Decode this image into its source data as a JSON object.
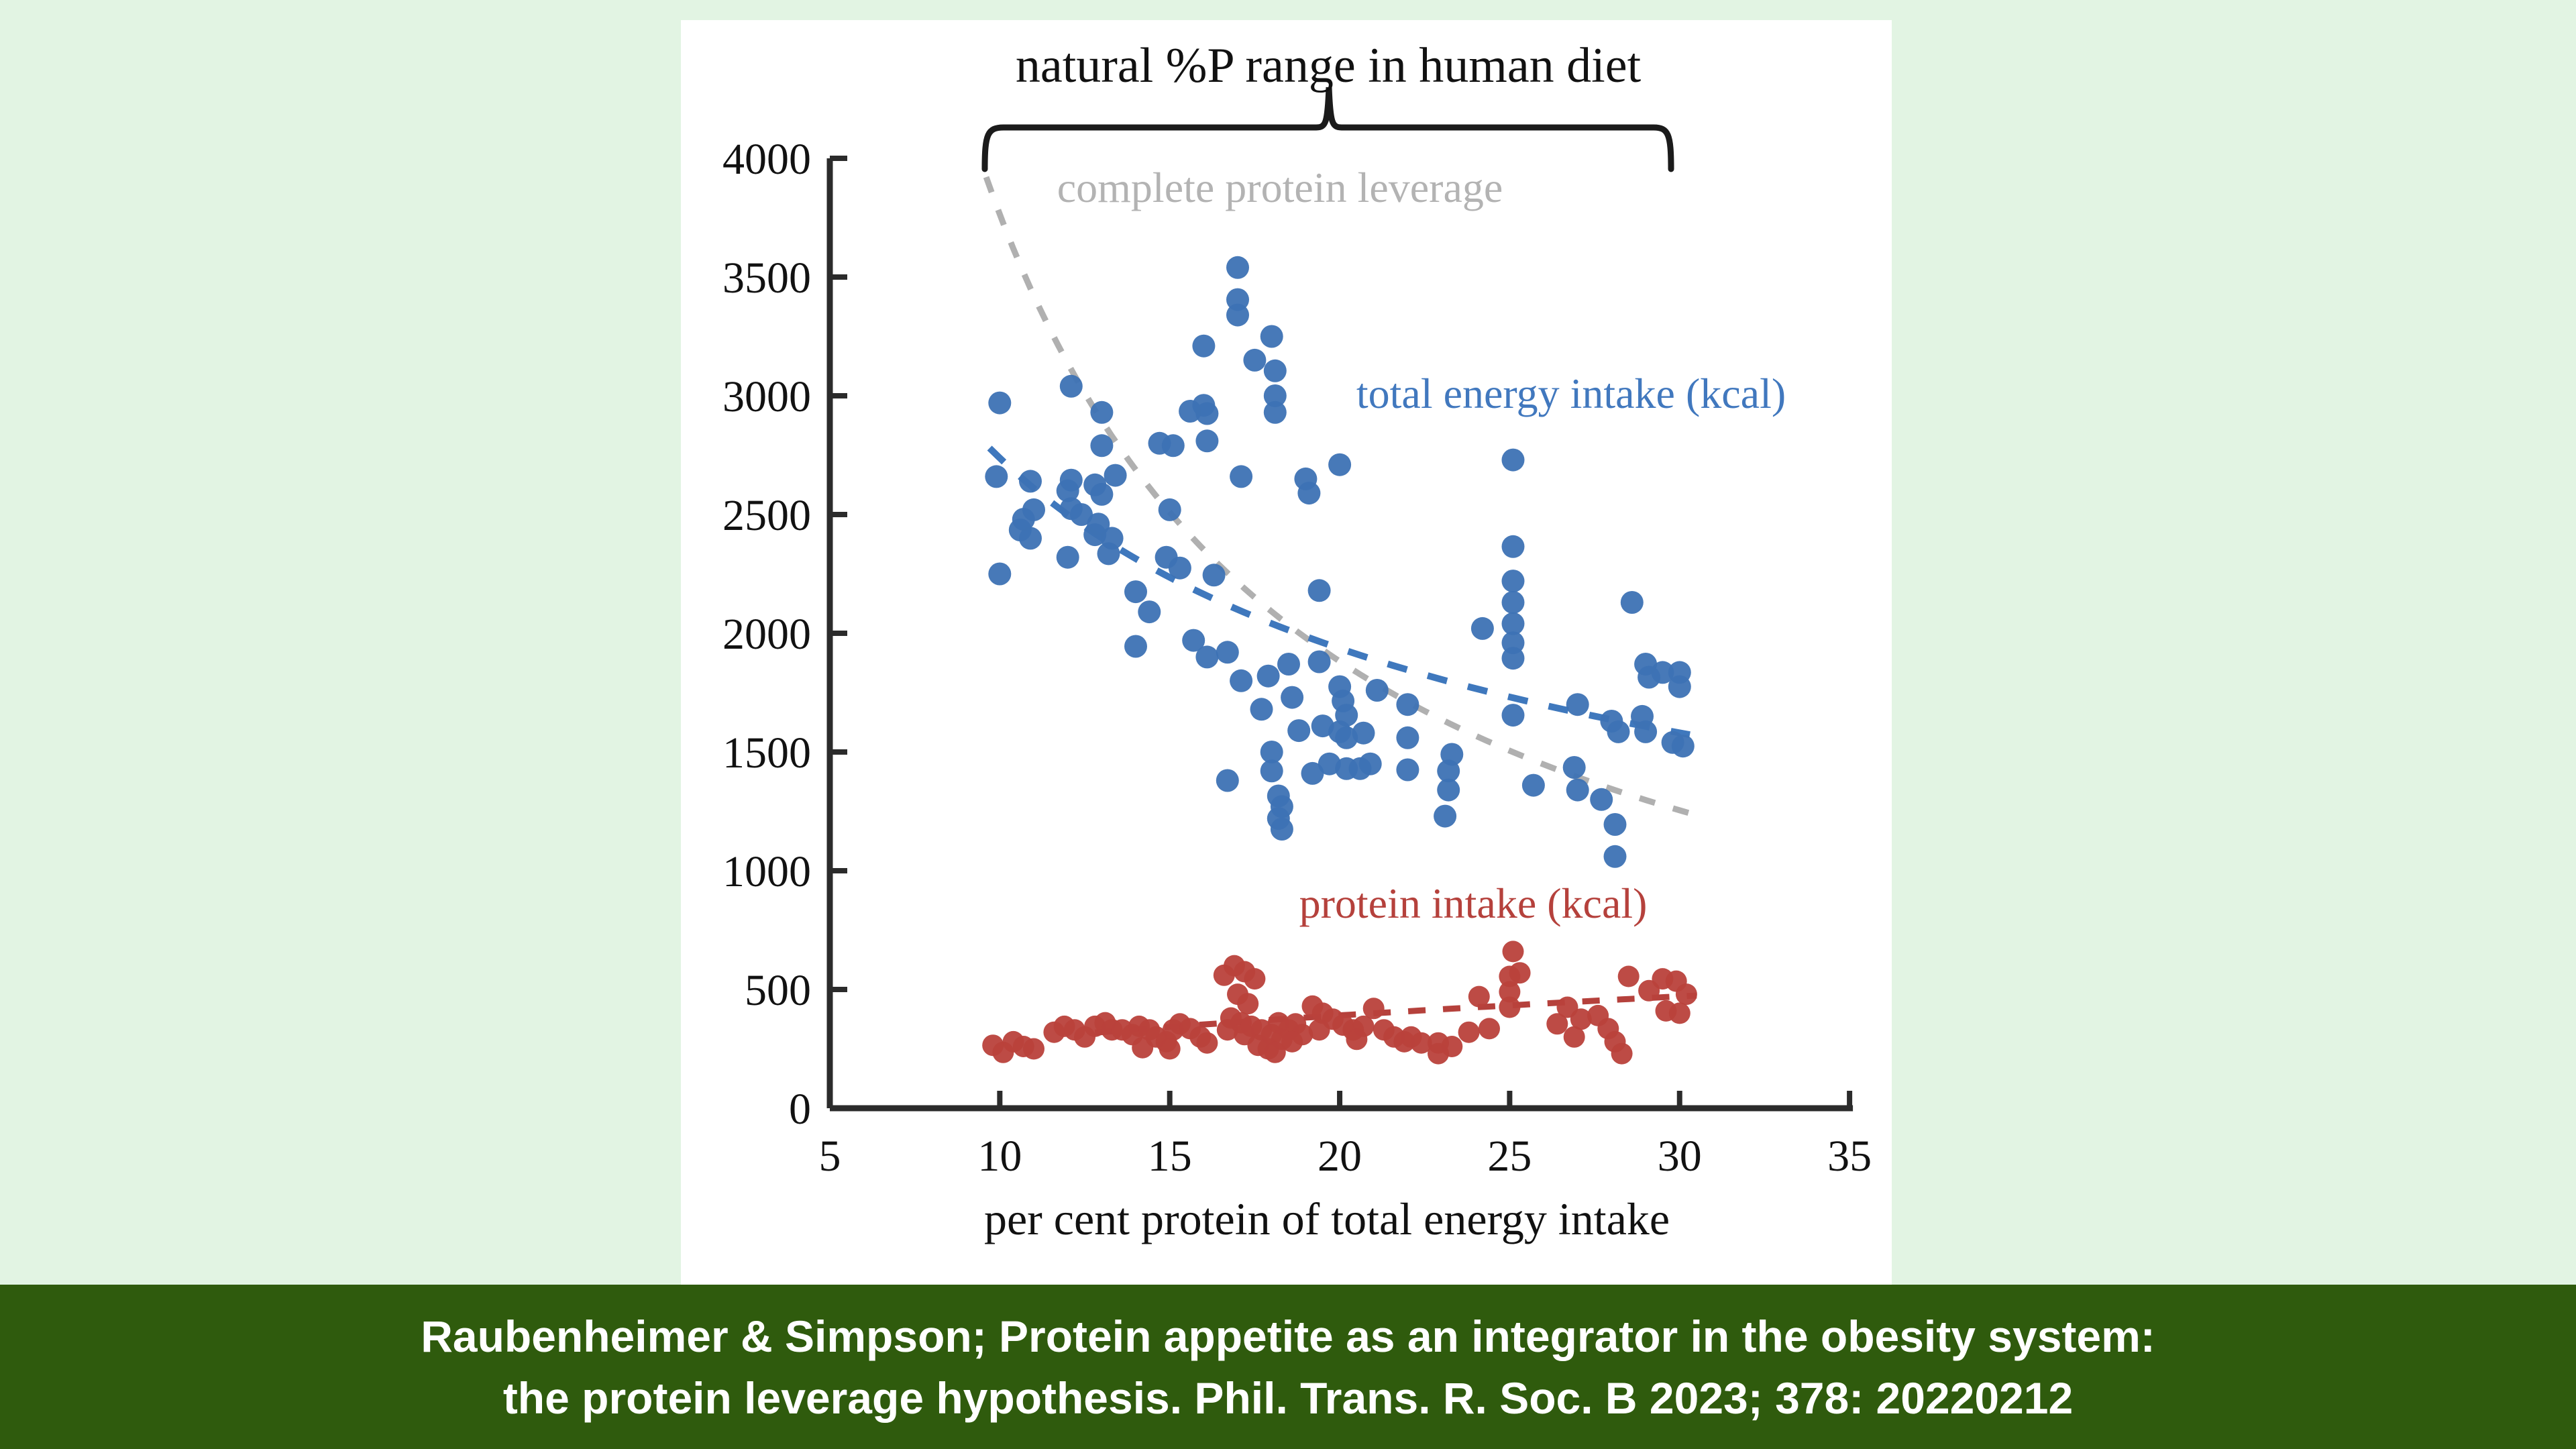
{
  "page": {
    "background": "#e2f4e3",
    "panel_background": "#ffffff",
    "axis_color": "#2b2b2b",
    "text_color": "#111111"
  },
  "caption": {
    "line1": "Raubenheimer & Simpson; Protein appetite as an integrator in the obesity system:",
    "line2": "the protein leverage hypothesis. Phil. Trans. R. Soc. B 2023; 378: 20220212",
    "background": "#2f5b0d",
    "text_color": "#ffffff"
  },
  "chart_data": {
    "type": "scatter",
    "title": "natural %P range in human diet",
    "xlabel": "per cent protein of total energy intake",
    "xlim": [
      5,
      35
    ],
    "ylim": [
      0,
      4000
    ],
    "x_ticks": [
      5,
      10,
      15,
      20,
      25,
      30,
      35
    ],
    "y_ticks": [
      0,
      500,
      1000,
      1500,
      2000,
      2500,
      3000,
      3500,
      4000
    ],
    "grid": false,
    "bracket": {
      "x_start": 9.55,
      "x_end": 29.75
    },
    "series": [
      {
        "name": "total energy intake (kcal)",
        "color": "#3d72b4",
        "label_color": "#4178be",
        "marker_radius": 17,
        "points": [
          [
            10.0,
            2970
          ],
          [
            12.1,
            3040
          ],
          [
            13.0,
            2930
          ],
          [
            16.0,
            3210
          ],
          [
            17.0,
            3540
          ],
          [
            17.0,
            3405
          ],
          [
            17.0,
            3340
          ],
          [
            17.5,
            3150
          ],
          [
            18.0,
            3250
          ],
          [
            18.1,
            3105
          ],
          [
            18.1,
            3000
          ],
          [
            18.1,
            2930
          ],
          [
            16.0,
            2960
          ],
          [
            15.6,
            2935
          ],
          [
            16.1,
            2925
          ],
          [
            16.1,
            2810
          ],
          [
            14.7,
            2800
          ],
          [
            15.1,
            2790
          ],
          [
            13.0,
            2790
          ],
          [
            9.9,
            2660
          ],
          [
            13.4,
            2665
          ],
          [
            12.1,
            2645
          ],
          [
            12.0,
            2600
          ],
          [
            12.8,
            2625
          ],
          [
            13.0,
            2585
          ],
          [
            10.9,
            2640
          ],
          [
            10.7,
            2480
          ],
          [
            10.9,
            2400
          ],
          [
            12.1,
            2525
          ],
          [
            12.4,
            2500
          ],
          [
            12.9,
            2460
          ],
          [
            13.3,
            2400
          ],
          [
            12.0,
            2320
          ],
          [
            10.0,
            2250
          ],
          [
            15.0,
            2520
          ],
          [
            11.0,
            2520
          ],
          [
            10.6,
            2435
          ],
          [
            12.8,
            2415
          ],
          [
            13.2,
            2335
          ],
          [
            14.0,
            2175
          ],
          [
            14.4,
            2090
          ],
          [
            14.9,
            2320
          ],
          [
            15.3,
            2275
          ],
          [
            16.3,
            2245
          ],
          [
            17.1,
            2660
          ],
          [
            19.0,
            2650
          ],
          [
            19.1,
            2590
          ],
          [
            20.0,
            2710
          ],
          [
            25.1,
            2730
          ],
          [
            19.4,
            2180
          ],
          [
            25.1,
            2365
          ],
          [
            25.1,
            2220
          ],
          [
            25.1,
            2130
          ],
          [
            25.1,
            2040
          ],
          [
            25.1,
            1960
          ],
          [
            25.1,
            1895
          ],
          [
            24.2,
            2020
          ],
          [
            28.6,
            2130
          ],
          [
            14.0,
            1945
          ],
          [
            15.7,
            1970
          ],
          [
            16.1,
            1900
          ],
          [
            16.7,
            1920
          ],
          [
            17.1,
            1800
          ],
          [
            17.9,
            1820
          ],
          [
            18.5,
            1870
          ],
          [
            19.4,
            1880
          ],
          [
            18.6,
            1730
          ],
          [
            17.7,
            1680
          ],
          [
            20.0,
            1775
          ],
          [
            20.1,
            1715
          ],
          [
            20.2,
            1655
          ],
          [
            21.1,
            1760
          ],
          [
            19.5,
            1610
          ],
          [
            18.8,
            1590
          ],
          [
            20.0,
            1585
          ],
          [
            20.7,
            1580
          ],
          [
            20.2,
            1560
          ],
          [
            19.7,
            1450
          ],
          [
            20.2,
            1430
          ],
          [
            20.6,
            1430
          ],
          [
            19.2,
            1410
          ],
          [
            16.7,
            1380
          ],
          [
            18.0,
            1500
          ],
          [
            18.0,
            1420
          ],
          [
            18.2,
            1315
          ],
          [
            18.3,
            1270
          ],
          [
            18.2,
            1220
          ],
          [
            18.3,
            1175
          ],
          [
            20.9,
            1450
          ],
          [
            22.0,
            1700
          ],
          [
            22.0,
            1560
          ],
          [
            22.0,
            1425
          ],
          [
            23.3,
            1490
          ],
          [
            23.2,
            1420
          ],
          [
            23.2,
            1340
          ],
          [
            23.1,
            1230
          ],
          [
            26.9,
            1435
          ],
          [
            25.7,
            1360
          ],
          [
            25.1,
            1655
          ],
          [
            27.0,
            1700
          ],
          [
            29.0,
            1870
          ],
          [
            29.5,
            1835
          ],
          [
            30.0,
            1835
          ],
          [
            30.0,
            1775
          ],
          [
            29.1,
            1815
          ],
          [
            28.0,
            1630
          ],
          [
            28.9,
            1650
          ],
          [
            29.0,
            1585
          ],
          [
            28.2,
            1585
          ],
          [
            29.8,
            1540
          ],
          [
            30.1,
            1525
          ],
          [
            27.0,
            1340
          ],
          [
            27.7,
            1300
          ],
          [
            28.1,
            1195
          ],
          [
            28.1,
            1060
          ]
        ]
      },
      {
        "name": "protein intake (kcal)",
        "color": "#b9413b",
        "label_color": "#b5413c",
        "marker_radius": 16,
        "points": [
          [
            9.8,
            265
          ],
          [
            10.1,
            235
          ],
          [
            10.4,
            280
          ],
          [
            10.7,
            260
          ],
          [
            11.0,
            250
          ],
          [
            11.6,
            320
          ],
          [
            11.9,
            345
          ],
          [
            12.2,
            330
          ],
          [
            12.5,
            300
          ],
          [
            12.8,
            345
          ],
          [
            13.1,
            360
          ],
          [
            13.3,
            330
          ],
          [
            13.6,
            330
          ],
          [
            13.9,
            310
          ],
          [
            14.1,
            345
          ],
          [
            14.4,
            330
          ],
          [
            14.6,
            300
          ],
          [
            14.9,
            280
          ],
          [
            15.1,
            330
          ],
          [
            15.3,
            355
          ],
          [
            15.6,
            335
          ],
          [
            15.9,
            300
          ],
          [
            16.1,
            275
          ],
          [
            14.2,
            255
          ],
          [
            15.0,
            250
          ],
          [
            16.6,
            560
          ],
          [
            16.9,
            600
          ],
          [
            17.2,
            575
          ],
          [
            17.5,
            545
          ],
          [
            17.0,
            480
          ],
          [
            17.3,
            440
          ],
          [
            16.8,
            380
          ],
          [
            17.1,
            360
          ],
          [
            17.4,
            345
          ],
          [
            17.7,
            330
          ],
          [
            18.0,
            310
          ],
          [
            18.3,
            290
          ],
          [
            17.6,
            265
          ],
          [
            17.9,
            250
          ],
          [
            18.1,
            235
          ],
          [
            18.5,
            330
          ],
          [
            18.7,
            355
          ],
          [
            18.9,
            310
          ],
          [
            17.2,
            310
          ],
          [
            16.7,
            330
          ],
          [
            18.2,
            360
          ],
          [
            18.6,
            280
          ],
          [
            19.2,
            430
          ],
          [
            19.5,
            400
          ],
          [
            19.8,
            375
          ],
          [
            20.1,
            350
          ],
          [
            20.4,
            330
          ],
          [
            20.7,
            345
          ],
          [
            21.0,
            420
          ],
          [
            21.3,
            330
          ],
          [
            21.6,
            300
          ],
          [
            21.9,
            280
          ],
          [
            20.5,
            290
          ],
          [
            19.4,
            330
          ],
          [
            22.1,
            300
          ],
          [
            22.4,
            275
          ],
          [
            22.9,
            275
          ],
          [
            23.3,
            260
          ],
          [
            22.9,
            230
          ],
          [
            23.8,
            320
          ],
          [
            24.4,
            335
          ],
          [
            24.1,
            470
          ],
          [
            25.1,
            660
          ],
          [
            25.0,
            555
          ],
          [
            25.0,
            490
          ],
          [
            25.0,
            425
          ],
          [
            25.3,
            570
          ],
          [
            26.4,
            355
          ],
          [
            26.7,
            425
          ],
          [
            27.1,
            375
          ],
          [
            26.9,
            300
          ],
          [
            27.6,
            390
          ],
          [
            27.9,
            335
          ],
          [
            28.1,
            280
          ],
          [
            28.3,
            230
          ],
          [
            28.5,
            555
          ],
          [
            29.1,
            495
          ],
          [
            29.5,
            545
          ],
          [
            29.9,
            535
          ],
          [
            30.2,
            480
          ],
          [
            29.6,
            410
          ],
          [
            30.0,
            400
          ]
        ]
      }
    ],
    "fit_curves": [
      {
        "name": "complete protein leverage",
        "color": "#b0b0b0",
        "k": 37640,
        "exp": -1,
        "x_start": 9.6,
        "x_end": 30.6,
        "dash": "24 28",
        "width": 9
      },
      {
        "name": "total energy fit",
        "color": "#3f78bd",
        "k": 8658,
        "exp": -0.5,
        "x_start": 9.7,
        "x_end": 30.3,
        "dash": "30 32",
        "width": 10
      },
      {
        "name": "protein fit",
        "color": "#b5413c",
        "k": 98.5,
        "exp": 0.46,
        "x_start": 12.8,
        "x_end": 30.5,
        "dash": "26 26",
        "width": 9
      }
    ]
  }
}
